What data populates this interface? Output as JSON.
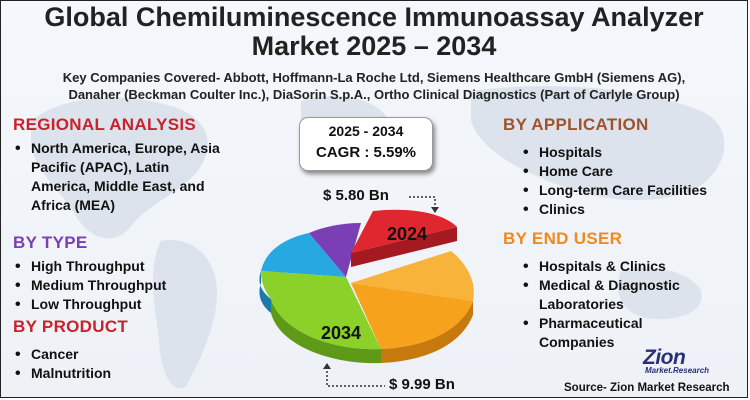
{
  "header": {
    "title_line1": "Global Chemiluminescence Immunoassay Analyzer",
    "title_line2": "Market 2025 – 2034",
    "companies_line1": "Key Companies Covered- Abbott, Hoffmann-La Roche Ltd, Siemens Healthcare GmbH (Siemens AG),",
    "companies_line2": "Danaher (Beckman Coulter Inc.), DiaSorin S.p.A., Ortho Clinical Diagnostics (Part of Carlyle Group)"
  },
  "regional": {
    "heading": "REGIONAL ANALYSIS",
    "items": [
      "North America, Europe, Asia Pacific (APAC), Latin America, Middle East, and Africa (MEA)"
    ]
  },
  "type": {
    "heading": "BY TYPE",
    "items": [
      "High Throughput",
      "Medium Throughput",
      "Low Throughput"
    ]
  },
  "product": {
    "heading": "BY PRODUCT",
    "items": [
      "Cancer",
      "Malnutrition"
    ]
  },
  "application": {
    "heading": "BY APPLICATION",
    "items": [
      "Hospitals",
      "Home Care",
      "Long-term Care Facilities",
      "Clinics"
    ]
  },
  "end_user": {
    "heading": "BY END USER",
    "items": [
      "Hospitals & Clinics",
      "Medical & Diagnostic Laboratories",
      "Pharmaceutical Companies"
    ]
  },
  "cagr": {
    "years": "2025 - 2034",
    "value": "CAGR : 5.59%"
  },
  "market": {
    "year_start": "2024",
    "year_end": "2034",
    "value_start": "$ 5.80 Bn",
    "value_end": "$ 9.99 Bn"
  },
  "pie_colors": {
    "red": "#e0262e",
    "orange": "#f6a21c",
    "green": "#8cd12a",
    "blue": "#27a8e0",
    "purple": "#7a3fb4"
  },
  "logo": {
    "word": "Zion",
    "sub": "Market.Research"
  },
  "source": "Source- Zion Market Research"
}
